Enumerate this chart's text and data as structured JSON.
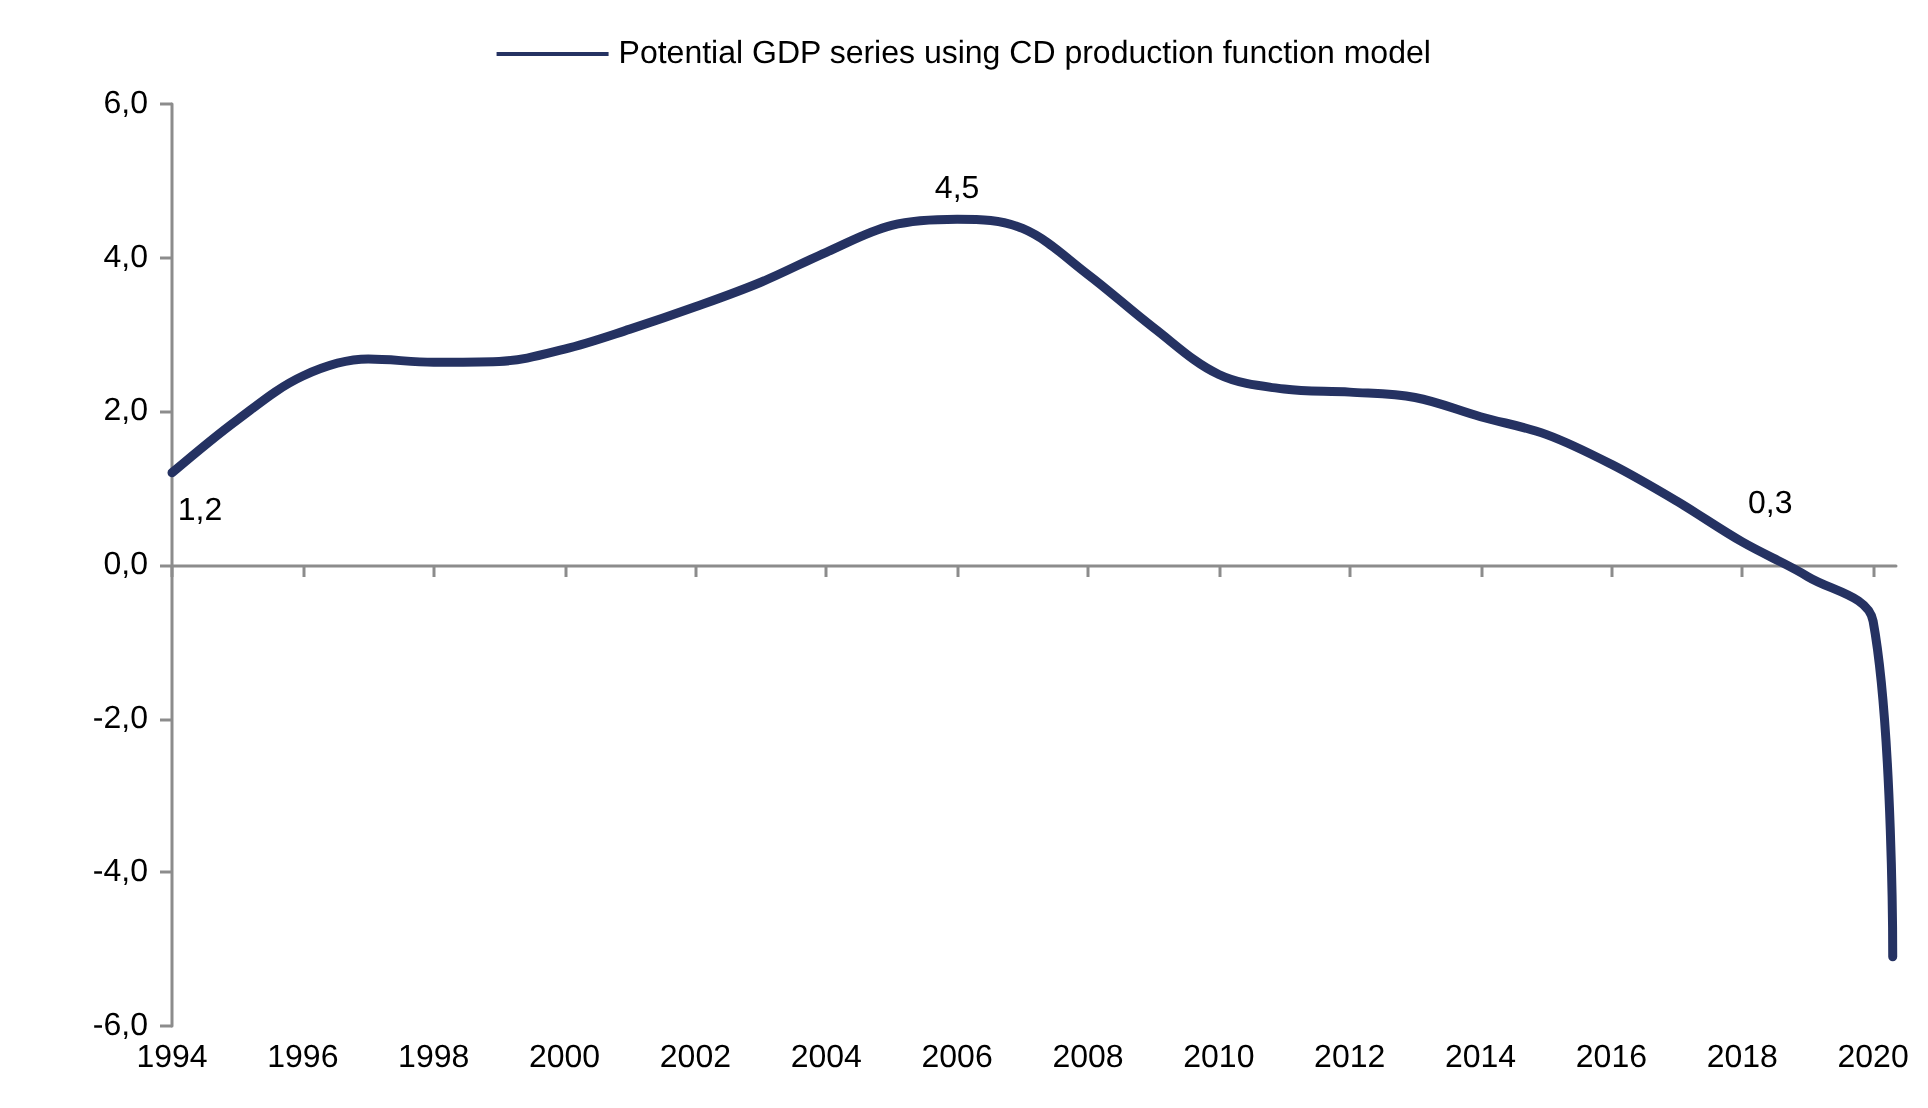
{
  "chart_data": {
    "type": "line",
    "x": [
      1994,
      1995,
      1996,
      1997,
      1998,
      1999,
      2000,
      2001,
      2002,
      2003,
      2004,
      2005,
      2006,
      2007,
      2008,
      2009,
      2010,
      2011,
      2012,
      2013,
      2014,
      2015,
      2016,
      2017,
      2018,
      2019,
      2020,
      2020.3
    ],
    "series": [
      {
        "name": "Potential GDP series using CD production function model",
        "color": "#253262",
        "values": [
          1.2,
          1.89,
          2.46,
          2.68,
          2.64,
          2.65,
          2.81,
          3.07,
          3.36,
          3.68,
          4.07,
          4.42,
          4.5,
          4.38,
          3.78,
          3.09,
          2.48,
          2.29,
          2.25,
          2.18,
          1.93,
          1.7,
          1.31,
          0.83,
          0.3,
          -0.15,
          -0.73,
          -5.1
        ],
        "value_labels": [
          "1,2",
          null,
          null,
          null,
          null,
          null,
          null,
          null,
          null,
          null,
          null,
          null,
          "4,5",
          null,
          null,
          null,
          null,
          null,
          null,
          null,
          null,
          null,
          null,
          null,
          "0,3",
          null,
          null,
          null
        ]
      }
    ],
    "xlim": [
      1994,
      2020.35
    ],
    "xticks": [
      1994,
      1996,
      1998,
      2000,
      2002,
      2004,
      2006,
      2008,
      2010,
      2012,
      2014,
      2016,
      2018,
      2020
    ],
    "ylim": [
      -6,
      6
    ],
    "yticks": [
      {
        "value": -6,
        "label": "-6,0"
      },
      {
        "value": -4,
        "label": "-4,0"
      },
      {
        "value": -2,
        "label": "-2,0"
      },
      {
        "value": 0,
        "label": "0,0"
      },
      {
        "value": 2,
        "label": "2,0"
      },
      {
        "value": 4,
        "label": "4,0"
      },
      {
        "value": 6,
        "label": "6,0"
      }
    ],
    "legend": "top",
    "marker": "none",
    "line_style": "solid"
  }
}
